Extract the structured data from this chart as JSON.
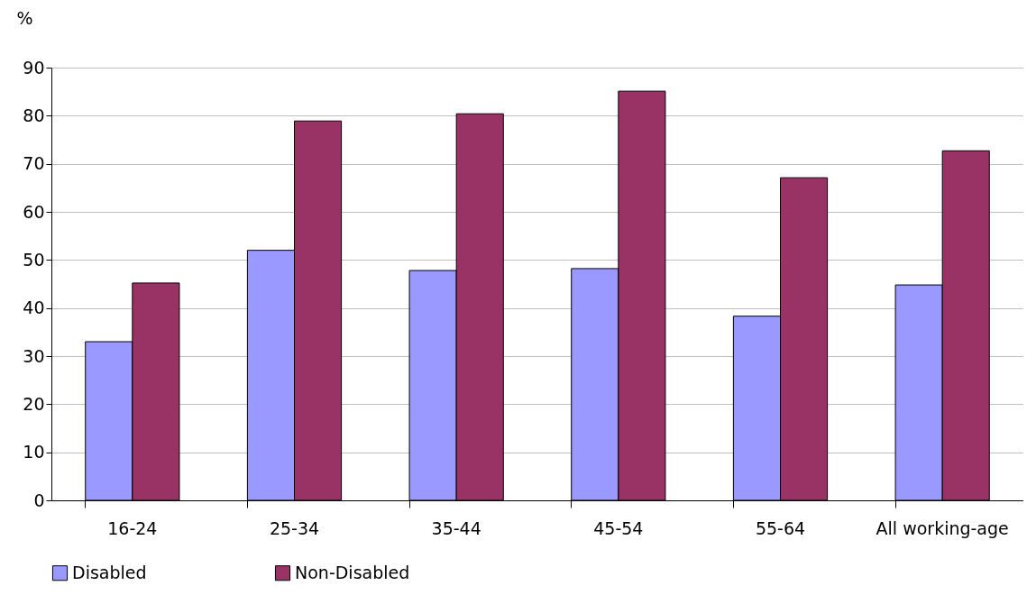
{
  "chart_data": {
    "type": "bar",
    "ylabel": "%",
    "categories": [
      "16-24",
      "25-34",
      "35-44",
      "45-54",
      "55-64",
      "All working-age"
    ],
    "series": [
      {
        "name": "Disabled",
        "color": "#9999ff",
        "values": [
          33,
          52,
          47.8,
          48.2,
          38.3,
          44.8
        ]
      },
      {
        "name": "Non-Disabled",
        "color": "#993366",
        "values": [
          45.2,
          78.9,
          80.4,
          85.1,
          67.1,
          72.7
        ]
      }
    ],
    "ylim": [
      0,
      90
    ],
    "yticks": [
      0,
      10,
      20,
      30,
      40,
      50,
      60,
      70,
      80,
      90
    ],
    "grid": "y",
    "legend": "bottom"
  }
}
